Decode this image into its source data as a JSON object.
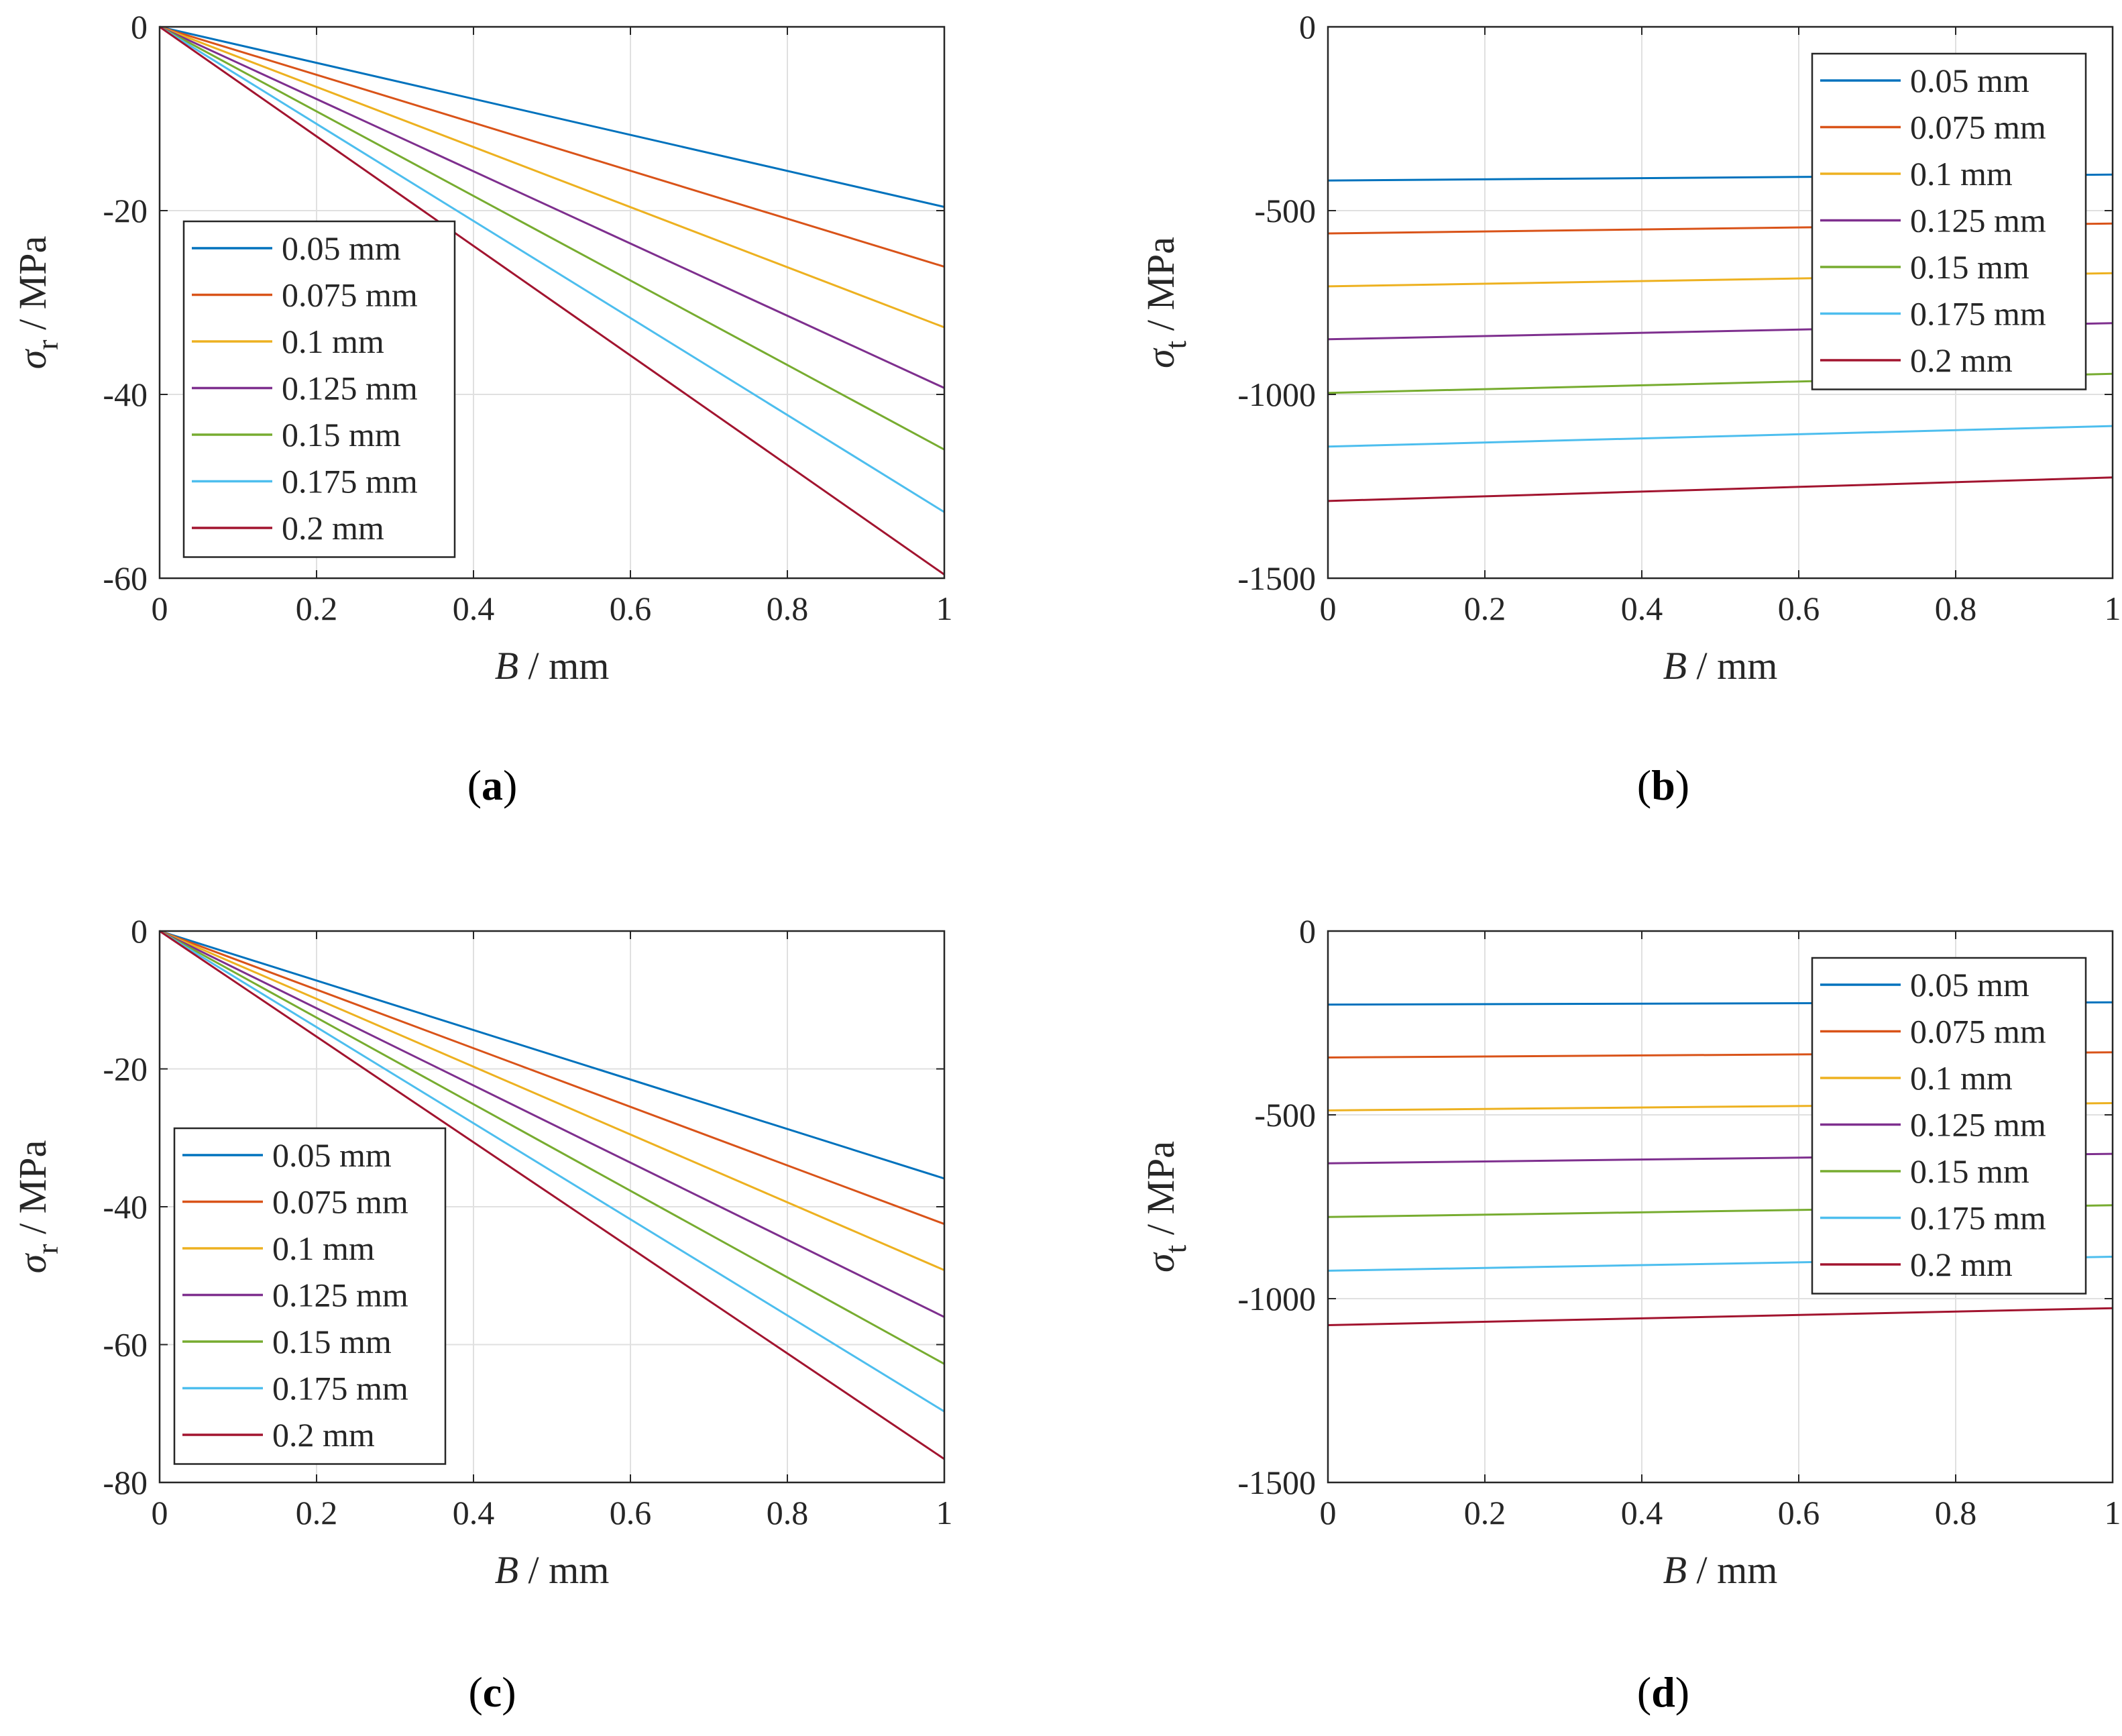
{
  "chart_data": [
    {
      "type": "line",
      "panel": "a",
      "caption_left": "(",
      "caption_letter": "a",
      "caption_right": ")",
      "xlabel_var": "B",
      "xlabel_unit": " / mm",
      "ylabel_sym": "σ",
      "ylabel_sub": "r",
      "ylabel_unit": " / MPa",
      "xlim": [
        0,
        1
      ],
      "ylim": [
        -60,
        0
      ],
      "xticks": [
        0,
        0.2,
        0.4,
        0.6,
        0.8,
        1
      ],
      "xtick_labels": [
        "0",
        "0.2",
        "0.4",
        "0.6",
        "0.8",
        "1"
      ],
      "yticks": [
        0,
        -20,
        -40,
        -60
      ],
      "ytick_labels": [
        "0",
        "-20",
        "-40",
        "-60"
      ],
      "grid": true,
      "legend_position": "left-middle",
      "series": [
        {
          "name": "0.05 mm",
          "color": "#0072BD",
          "x": [
            0,
            1
          ],
          "y": [
            0,
            -19.6
          ]
        },
        {
          "name": "0.075 mm",
          "color": "#D95319",
          "x": [
            0,
            1
          ],
          "y": [
            0,
            -26.1
          ]
        },
        {
          "name": "0.1 mm",
          "color": "#EDB120",
          "x": [
            0,
            1
          ],
          "y": [
            0,
            -32.7
          ]
        },
        {
          "name": "0.125 mm",
          "color": "#7E2F8E",
          "x": [
            0,
            1
          ],
          "y": [
            0,
            -39.3
          ]
        },
        {
          "name": "0.15 mm",
          "color": "#77AC30",
          "x": [
            0,
            1
          ],
          "y": [
            0,
            -46.0
          ]
        },
        {
          "name": "0.175 mm",
          "color": "#4DBEEE",
          "x": [
            0,
            1
          ],
          "y": [
            0,
            -52.8
          ]
        },
        {
          "name": "0.2 mm",
          "color": "#A2142F",
          "x": [
            0,
            1
          ],
          "y": [
            0,
            -59.6
          ]
        }
      ]
    },
    {
      "type": "line",
      "panel": "b",
      "caption_left": "(",
      "caption_letter": "b",
      "caption_right": ")",
      "xlabel_var": "B",
      "xlabel_unit": " / mm",
      "ylabel_sym": "σ",
      "ylabel_sub": "t",
      "ylabel_unit": " / MPa",
      "xlim": [
        0,
        1
      ],
      "ylim": [
        -1500,
        0
      ],
      "xticks": [
        0,
        0.2,
        0.4,
        0.6,
        0.8,
        1
      ],
      "xtick_labels": [
        "0",
        "0.2",
        "0.4",
        "0.6",
        "0.8",
        "1"
      ],
      "yticks": [
        0,
        -500,
        -1000,
        -1500
      ],
      "ytick_labels": [
        "0",
        "-500",
        "-1000",
        "-1500"
      ],
      "grid": true,
      "legend_position": "top-right",
      "series": [
        {
          "name": "0.05 mm",
          "color": "#0072BD",
          "x": [
            0,
            1
          ],
          "y": [
            -418,
            -402
          ]
        },
        {
          "name": "0.075 mm",
          "color": "#D95319",
          "x": [
            0,
            1
          ],
          "y": [
            -562,
            -535
          ]
        },
        {
          "name": "0.1 mm",
          "color": "#EDB120",
          "x": [
            0,
            1
          ],
          "y": [
            -706,
            -670
          ]
        },
        {
          "name": "0.125 mm",
          "color": "#7E2F8E",
          "x": [
            0,
            1
          ],
          "y": [
            -850,
            -806
          ]
        },
        {
          "name": "0.15 mm",
          "color": "#77AC30",
          "x": [
            0,
            1
          ],
          "y": [
            -996,
            -944
          ]
        },
        {
          "name": "0.175 mm",
          "color": "#4DBEEE",
          "x": [
            0,
            1
          ],
          "y": [
            -1142,
            -1086
          ]
        },
        {
          "name": "0.2 mm",
          "color": "#A2142F",
          "x": [
            0,
            1
          ],
          "y": [
            -1290,
            -1226
          ]
        }
      ]
    },
    {
      "type": "line",
      "panel": "c",
      "caption_left": "(",
      "caption_letter": "c",
      "caption_right": ")",
      "xlabel_var": "B",
      "xlabel_unit": " / mm",
      "ylabel_sym": "σ",
      "ylabel_sub": "r",
      "ylabel_unit": " / MPa",
      "xlim": [
        0,
        1
      ],
      "ylim": [
        -80,
        0
      ],
      "xticks": [
        0,
        0.2,
        0.4,
        0.6,
        0.8,
        1
      ],
      "xtick_labels": [
        "0",
        "0.2",
        "0.4",
        "0.6",
        "0.8",
        "1"
      ],
      "yticks": [
        0,
        -20,
        -40,
        -60,
        -80
      ],
      "ytick_labels": [
        "0",
        "-20",
        "-40",
        "-60",
        "-80"
      ],
      "grid": true,
      "legend_position": "left-middle",
      "series": [
        {
          "name": "0.05 mm",
          "color": "#0072BD",
          "x": [
            0,
            1
          ],
          "y": [
            0,
            -35.9
          ]
        },
        {
          "name": "0.075 mm",
          "color": "#D95319",
          "x": [
            0,
            1
          ],
          "y": [
            0,
            -42.5
          ]
        },
        {
          "name": "0.1 mm",
          "color": "#EDB120",
          "x": [
            0,
            1
          ],
          "y": [
            0,
            -49.2
          ]
        },
        {
          "name": "0.125 mm",
          "color": "#7E2F8E",
          "x": [
            0,
            1
          ],
          "y": [
            0,
            -56.0
          ]
        },
        {
          "name": "0.15 mm",
          "color": "#77AC30",
          "x": [
            0,
            1
          ],
          "y": [
            0,
            -62.8
          ]
        },
        {
          "name": "0.175 mm",
          "color": "#4DBEEE",
          "x": [
            0,
            1
          ],
          "y": [
            0,
            -69.7
          ]
        },
        {
          "name": "0.2 mm",
          "color": "#A2142F",
          "x": [
            0,
            1
          ],
          "y": [
            0,
            -76.6
          ]
        }
      ]
    },
    {
      "type": "line",
      "panel": "d",
      "caption_left": "(",
      "caption_letter": "d",
      "caption_right": ")",
      "xlabel_var": "B",
      "xlabel_unit": " / mm",
      "ylabel_sym": "σ",
      "ylabel_sub": "t",
      "ylabel_unit": " / MPa",
      "xlim": [
        0,
        1
      ],
      "ylim": [
        -1500,
        0
      ],
      "xticks": [
        0,
        0.2,
        0.4,
        0.6,
        0.8,
        1
      ],
      "xtick_labels": [
        "0",
        "0.2",
        "0.4",
        "0.6",
        "0.8",
        "1"
      ],
      "yticks": [
        0,
        -500,
        -1000,
        -1500
      ],
      "ytick_labels": [
        "0",
        "-500",
        "-1000",
        "-1500"
      ],
      "grid": true,
      "legend_position": "top-right",
      "series": [
        {
          "name": "0.05 mm",
          "color": "#0072BD",
          "x": [
            0,
            1
          ],
          "y": [
            -200,
            -194
          ]
        },
        {
          "name": "0.075 mm",
          "color": "#D95319",
          "x": [
            0,
            1
          ],
          "y": [
            -344,
            -330
          ]
        },
        {
          "name": "0.1 mm",
          "color": "#EDB120",
          "x": [
            0,
            1
          ],
          "y": [
            -488,
            -468
          ]
        },
        {
          "name": "0.125 mm",
          "color": "#7E2F8E",
          "x": [
            0,
            1
          ],
          "y": [
            -632,
            -606
          ]
        },
        {
          "name": "0.15 mm",
          "color": "#77AC30",
          "x": [
            0,
            1
          ],
          "y": [
            -778,
            -746
          ]
        },
        {
          "name": "0.175 mm",
          "color": "#4DBEEE",
          "x": [
            0,
            1
          ],
          "y": [
            -924,
            -886
          ]
        },
        {
          "name": "0.2 mm",
          "color": "#A2142F",
          "x": [
            0,
            1
          ],
          "y": [
            -1072,
            -1026
          ]
        }
      ]
    }
  ]
}
